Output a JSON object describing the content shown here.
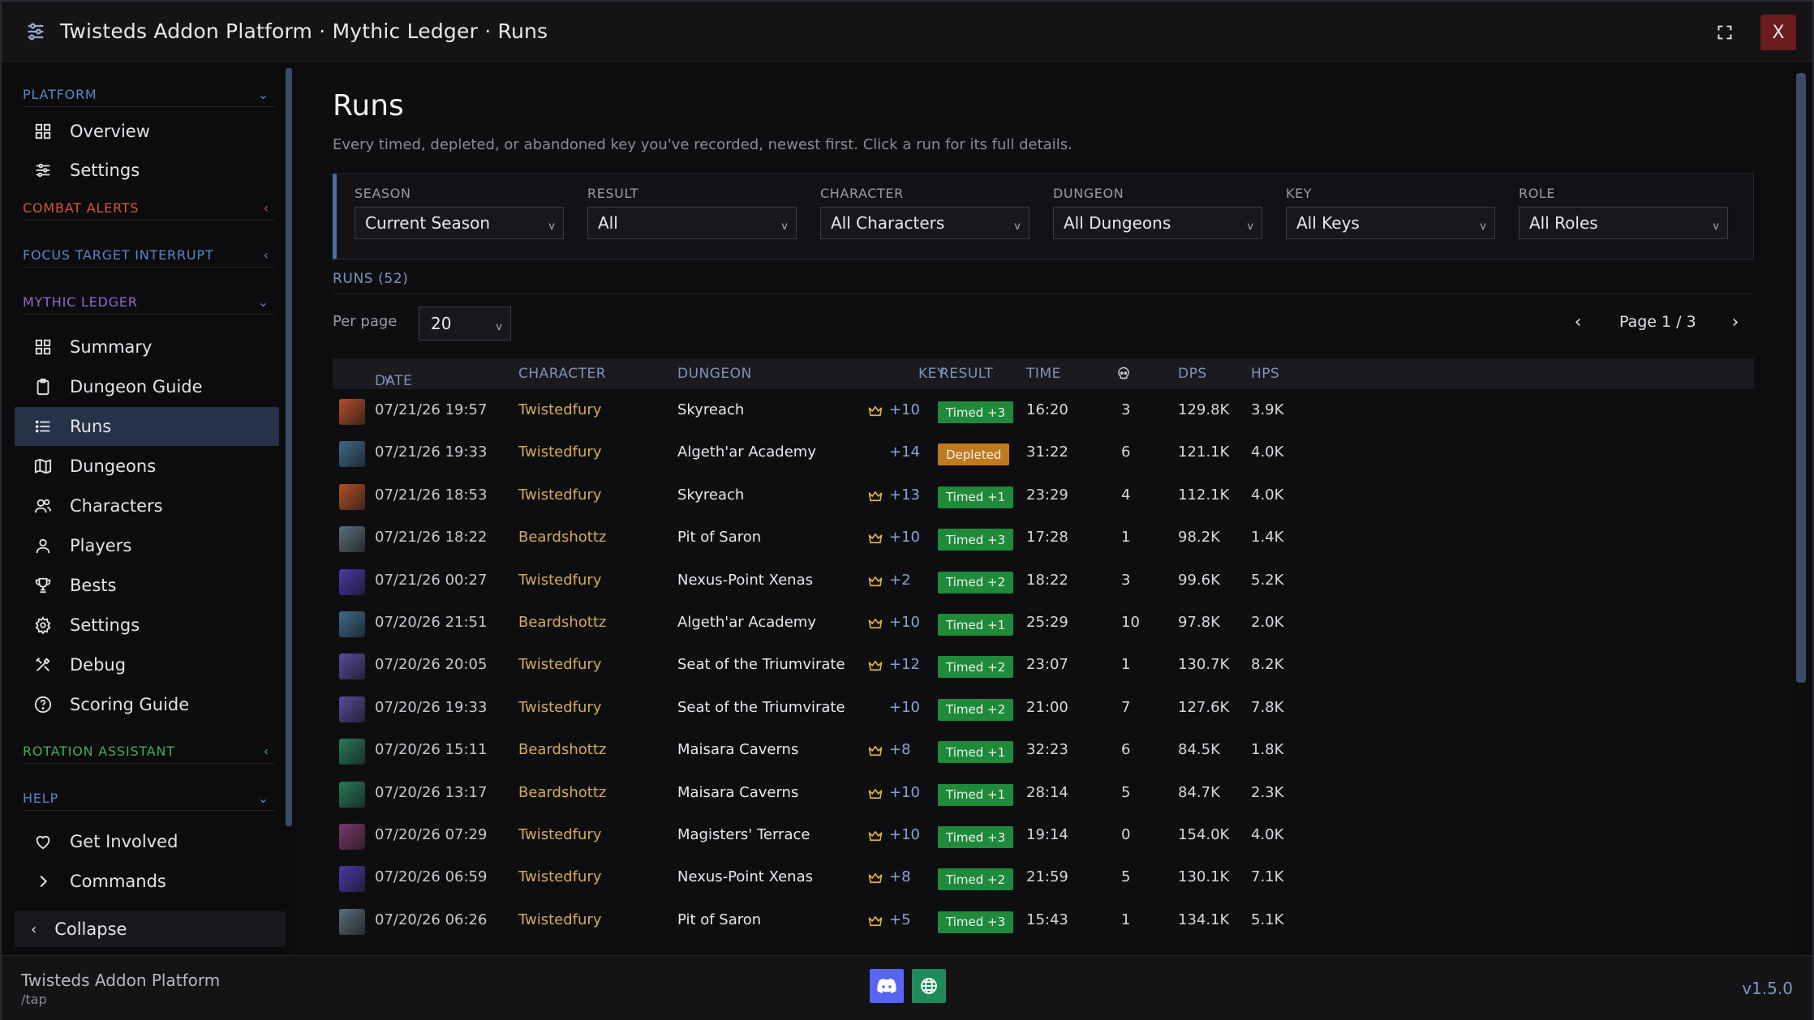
{
  "window": {
    "title": "Twisteds Addon Platform  ·  Mythic Ledger · Runs",
    "close_label": "X",
    "expand_icon": "expand-icon"
  },
  "sidebar": {
    "sections": [
      {
        "title": "PLATFORM",
        "color": "#5b86c8",
        "state": "expanded"
      },
      {
        "title": "COMBAT ALERTS",
        "color": "#d9553b",
        "state": "collapsed"
      },
      {
        "title": "FOCUS TARGET INTERRUPT",
        "color": "#5b86c8",
        "state": "collapsed"
      },
      {
        "title": "MYTHIC LEDGER",
        "color": "#8e6bc8",
        "state": "expanded"
      },
      {
        "title": "ROTATION ASSISTANT",
        "color": "#3fae5b",
        "state": "collapsed"
      },
      {
        "title": "HELP",
        "color": "#5b86c8",
        "state": "expanded"
      }
    ],
    "items": [
      {
        "label": "Overview",
        "icon": "grid-icon"
      },
      {
        "label": "Settings",
        "icon": "sliders-icon"
      },
      {
        "label": "Summary",
        "icon": "grid-icon"
      },
      {
        "label": "Dungeon Guide",
        "icon": "clipboard-icon"
      },
      {
        "label": "Runs",
        "icon": "list-icon",
        "active": true
      },
      {
        "label": "Dungeons",
        "icon": "map-icon"
      },
      {
        "label": "Characters",
        "icon": "users-icon"
      },
      {
        "label": "Players",
        "icon": "user-icon"
      },
      {
        "label": "Bests",
        "icon": "trophy-icon"
      },
      {
        "label": "Settings",
        "icon": "gear-icon"
      },
      {
        "label": "Debug",
        "icon": "tools-icon"
      },
      {
        "label": "Scoring Guide",
        "icon": "question-icon"
      },
      {
        "label": "Get Involved",
        "icon": "heart-icon"
      },
      {
        "label": "Commands",
        "icon": "chevron-right-icon"
      }
    ],
    "collapse_label": "Collapse"
  },
  "main": {
    "title": "Runs",
    "subtitle": "Every timed, depleted, or abandoned key you've recorded, newest first. Click a run for its full details.",
    "filters": [
      {
        "label": "SEASON",
        "value": "Current Season"
      },
      {
        "label": "RESULT",
        "value": "All"
      },
      {
        "label": "CHARACTER",
        "value": "All Characters"
      },
      {
        "label": "DUNGEON",
        "value": "All Dungeons"
      },
      {
        "label": "KEY",
        "value": "All Keys"
      },
      {
        "label": "ROLE",
        "value": "All Roles"
      }
    ],
    "runs_count": "RUNS (52)",
    "per_page_label": "Per page",
    "per_page_value": "20",
    "pager_text": "Page 1 / 3",
    "columns": {
      "date": "DATE",
      "sort_indicator": "v",
      "character": "CHARACTER",
      "dungeon": "DUNGEON",
      "key": "KEY",
      "result": "RESULT",
      "time": "TIME",
      "deaths_icon": "skull-icon",
      "dps": "DPS",
      "hps": "HPS"
    },
    "rows": [
      {
        "date": "07/21/26 19:57",
        "character": "Twistedfury",
        "dungeon": "Skyreach",
        "crown": true,
        "key": "+10",
        "result": "Timed +3",
        "result_type": "timed",
        "time": "16:20",
        "deaths": "3",
        "dps": "129.8K",
        "hps": "3.9K",
        "thumb_color": "#b5502a"
      },
      {
        "date": "07/21/26 19:33",
        "character": "Twistedfury",
        "dungeon": "Algeth'ar Academy",
        "crown": false,
        "key": "+14",
        "result": "Depleted",
        "result_type": "depleted",
        "time": "31:22",
        "deaths": "6",
        "dps": "121.1K",
        "hps": "4.0K",
        "thumb_color": "#3f6a8a"
      },
      {
        "date": "07/21/26 18:53",
        "character": "Twistedfury",
        "dungeon": "Skyreach",
        "crown": true,
        "key": "+13",
        "result": "Timed +1",
        "result_type": "timed",
        "time": "23:29",
        "deaths": "4",
        "dps": "112.1K",
        "hps": "4.0K",
        "thumb_color": "#b5502a"
      },
      {
        "date": "07/21/26 18:22",
        "character": "Beardshottz",
        "dungeon": "Pit of Saron",
        "crown": true,
        "key": "+10",
        "result": "Timed +3",
        "result_type": "timed",
        "time": "17:28",
        "deaths": "1",
        "dps": "98.2K",
        "hps": "1.4K",
        "thumb_color": "#5a6e7a"
      },
      {
        "date": "07/21/26 00:27",
        "character": "Twistedfury",
        "dungeon": "Nexus-Point Xenas",
        "crown": true,
        "key": "+2",
        "result": "Timed +2",
        "result_type": "timed",
        "time": "18:22",
        "deaths": "3",
        "dps": "99.6K",
        "hps": "5.2K",
        "thumb_color": "#4a3aa8"
      },
      {
        "date": "07/20/26 21:51",
        "character": "Beardshottz",
        "dungeon": "Algeth'ar Academy",
        "crown": true,
        "key": "+10",
        "result": "Timed +1",
        "result_type": "timed",
        "time": "25:29",
        "deaths": "10",
        "dps": "97.8K",
        "hps": "2.0K",
        "thumb_color": "#3f6a8a"
      },
      {
        "date": "07/20/26 20:05",
        "character": "Twistedfury",
        "dungeon": "Seat of the Triumvirate",
        "crown": true,
        "key": "+12",
        "result": "Timed +2",
        "result_type": "timed",
        "time": "23:07",
        "deaths": "1",
        "dps": "130.7K",
        "hps": "8.2K",
        "thumb_color": "#5a4a9a"
      },
      {
        "date": "07/20/26 19:33",
        "character": "Twistedfury",
        "dungeon": "Seat of the Triumvirate",
        "crown": false,
        "key": "+10",
        "result": "Timed +2",
        "result_type": "timed",
        "time": "21:00",
        "deaths": "7",
        "dps": "127.6K",
        "hps": "7.8K",
        "thumb_color": "#5a4a9a"
      },
      {
        "date": "07/20/26 15:11",
        "character": "Beardshottz",
        "dungeon": "Maisara Caverns",
        "crown": true,
        "key": "+8",
        "result": "Timed +1",
        "result_type": "timed",
        "time": "32:23",
        "deaths": "6",
        "dps": "84.5K",
        "hps": "1.8K",
        "thumb_color": "#2a7a5a"
      },
      {
        "date": "07/20/26 13:17",
        "character": "Beardshottz",
        "dungeon": "Maisara Caverns",
        "crown": true,
        "key": "+10",
        "result": "Timed +1",
        "result_type": "timed",
        "time": "28:14",
        "deaths": "5",
        "dps": "84.7K",
        "hps": "2.3K",
        "thumb_color": "#2a7a5a"
      },
      {
        "date": "07/20/26 07:29",
        "character": "Twistedfury",
        "dungeon": "Magisters' Terrace",
        "crown": true,
        "key": "+10",
        "result": "Timed +3",
        "result_type": "timed",
        "time": "19:14",
        "deaths": "0",
        "dps": "154.0K",
        "hps": "4.0K",
        "thumb_color": "#7a3a6a"
      },
      {
        "date": "07/20/26 06:59",
        "character": "Twistedfury",
        "dungeon": "Nexus-Point Xenas",
        "crown": true,
        "key": "+8",
        "result": "Timed +2",
        "result_type": "timed",
        "time": "21:59",
        "deaths": "5",
        "dps": "130.1K",
        "hps": "7.1K",
        "thumb_color": "#4a3aa8"
      },
      {
        "date": "07/20/26 06:26",
        "character": "Twistedfury",
        "dungeon": "Pit of Saron",
        "crown": true,
        "key": "+5",
        "result": "Timed +3",
        "result_type": "timed",
        "time": "15:43",
        "deaths": "1",
        "dps": "134.1K",
        "hps": "5.1K",
        "thumb_color": "#5a6e7a"
      }
    ]
  },
  "footer": {
    "title": "Twisteds Addon Platform",
    "sub": "/tap",
    "version": "v1.5.0",
    "discord_icon": "discord-icon",
    "web_icon": "globe-icon"
  },
  "colors": {
    "accent": "#4b6ea8",
    "active_nav": "#263247",
    "timed": "#1e8a3a",
    "depleted": "#c07a1e",
    "character": "#d4aa5a",
    "key": "#8aa2d6",
    "crown": "#e0b23c"
  }
}
